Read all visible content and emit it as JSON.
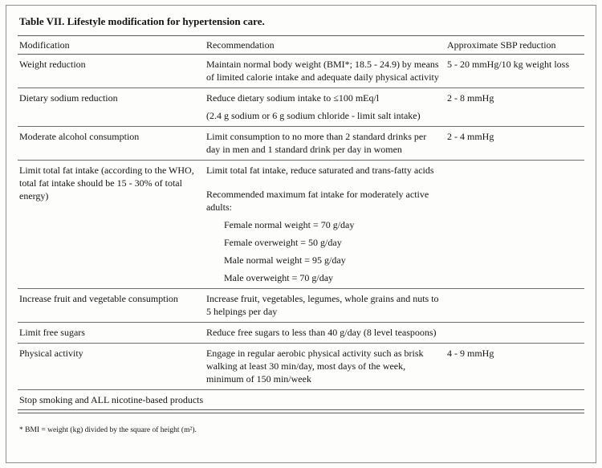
{
  "table": {
    "title": "Table VII. Lifestyle modification for hypertension care.",
    "columns": [
      "Modification",
      "Recommendation",
      "Approximate SBP reduction"
    ],
    "rows": [
      {
        "modification": "Weight reduction",
        "recommendation": [
          "Maintain normal body weight (BMI*; 18.5 - 24.9) by means of limited calorie intake and adequate daily physical activity"
        ],
        "sbp": "5 - 20  mmHg/10 kg weight loss"
      },
      {
        "modification": "Dietary sodium reduction",
        "recommendation": [
          "Reduce dietary sodium intake to ≤100 mEq/l",
          "(2.4 g sodium or 6 g sodium chloride - limit salt intake)"
        ],
        "sbp": "2 - 8  mmHg"
      },
      {
        "modification": "Moderate alcohol consumption",
        "recommendation": [
          "Limit consumption to no more than 2 standard drinks per day in men and 1 standard drink per day in women"
        ],
        "sbp": "2 - 4  mmHg"
      },
      {
        "modification": "Limit total fat intake (according to the WHO, total fat intake should be 15 - 30% of total energy)",
        "recommendation": [
          "Limit total fat intake, reduce saturated and trans-fatty acids",
          "Recommended maximum fat intake for moderately active adults:"
        ],
        "fat_items": [
          "Female normal weight = 70 g/day",
          "Female overweight = 50 g/day",
          "Male normal weight = 95 g/day",
          "Male overweight = 70 g/day"
        ],
        "sbp": ""
      },
      {
        "modification": "Increase fruit and vegetable consumption",
        "recommendation": [
          "Increase fruit, vegetables, legumes, whole grains and nuts to 5 helpings per day"
        ],
        "sbp": ""
      },
      {
        "modification": "Limit free sugars",
        "recommendation": [
          "Reduce free sugars to less than 40 g/day (8 level teaspoons)"
        ],
        "sbp": ""
      },
      {
        "modification": "Physical activity",
        "recommendation": [
          "Engage in regular aerobic physical activity such as brisk walking at least 30 min/day, most days of the week, minimum of 150 min/week"
        ],
        "sbp": "4 - 9  mmHg"
      }
    ],
    "full_width_row": "Stop smoking and  ALL nicotine-based products",
    "footnote": "* BMI = weight (kg) divided by the square of height (m²)."
  }
}
